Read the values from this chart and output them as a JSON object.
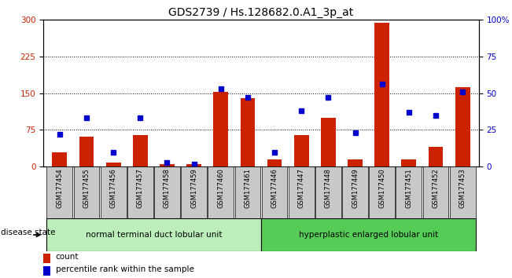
{
  "title": "GDS2739 / Hs.128682.0.A1_3p_at",
  "samples": [
    "GSM177454",
    "GSM177455",
    "GSM177456",
    "GSM177457",
    "GSM177458",
    "GSM177459",
    "GSM177460",
    "GSM177461",
    "GSM177446",
    "GSM177447",
    "GSM177448",
    "GSM177449",
    "GSM177450",
    "GSM177451",
    "GSM177452",
    "GSM177453"
  ],
  "counts": [
    30,
    62,
    8,
    65,
    5,
    5,
    153,
    140,
    15,
    65,
    100,
    15,
    293,
    15,
    40,
    162
  ],
  "percentiles": [
    22,
    33,
    10,
    33,
    3,
    2,
    53,
    47,
    10,
    38,
    47,
    23,
    56,
    37,
    35,
    51
  ],
  "group1_label": "normal terminal duct lobular unit",
  "group1_count": 8,
  "group2_label": "hyperplastic enlarged lobular unit",
  "group2_count": 8,
  "disease_state_label": "disease state",
  "ylim_left": [
    0,
    300
  ],
  "ylim_right": [
    0,
    100
  ],
  "yticks_left": [
    0,
    75,
    150,
    225,
    300
  ],
  "yticks_right": [
    0,
    25,
    50,
    75,
    100
  ],
  "bar_color": "#cc2200",
  "dot_color": "#0000cc",
  "bg_color": "#ffffff",
  "group1_color": "#bbeebb",
  "group2_color": "#55cc55",
  "tick_label_bg": "#c8c8c8",
  "legend_count_color": "#cc2200",
  "legend_pct_color": "#0000cc",
  "title_fontsize": 10,
  "axis_fontsize": 7.5,
  "legend_fontsize": 7.5,
  "bar_width": 0.55
}
